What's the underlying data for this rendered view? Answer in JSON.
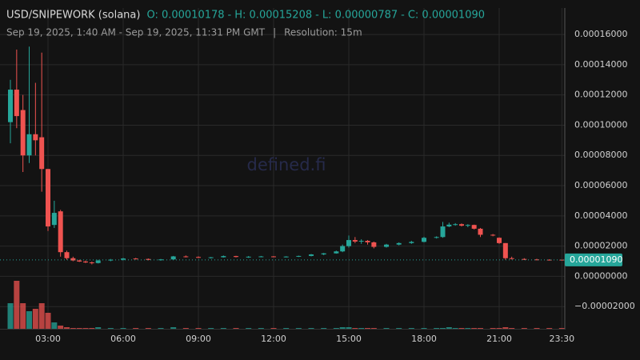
{
  "chart_data": {
    "type": "candlestick",
    "title": "USD/SNIPEWORK (solana)",
    "ohlc": [
      "O: 0.00010178",
      "H: 0.00015208",
      "L: 0.00000787",
      "C: 0.00001090"
    ],
    "ohlc_separator": "-",
    "subtitle": "Sep 19, 2025, 1:40 AM - Sep 19, 2025, 11:31 PM GMT",
    "subtitle_separator": "|",
    "resolution": "Resolution: 15m",
    "watermark": "defined.fi",
    "up_color": "#26a69a",
    "down_color": "#ef5350",
    "x": [
      1.5,
      1.75,
      2,
      2.25,
      2.5,
      2.75,
      3,
      3.25,
      3.5,
      3.75,
      4,
      4.25,
      4.5,
      4.75,
      5,
      5.5,
      6,
      6.5,
      7,
      7.5,
      8,
      8.5,
      9,
      9.5,
      10,
      10.5,
      11,
      11.5,
      12,
      12.5,
      13,
      13.5,
      14,
      14.5,
      14.75,
      15,
      15.25,
      15.5,
      15.75,
      16,
      16.5,
      17,
      17.5,
      18,
      18.5,
      18.75,
      19,
      19.25,
      19.5,
      19.75,
      20,
      20.25,
      20.75,
      21,
      21.25,
      21.5,
      22,
      22.5,
      23,
      23.5
    ],
    "open": [
      0.000102,
      0.0001235,
      0.00011,
      8e-05,
      9.4e-05,
      9.2e-05,
      7.1e-05,
      3.4e-05,
      4.3e-05,
      1.6e-05,
      1.2e-05,
      1.05e-05,
      9.8e-06,
      9.2e-06,
      8.8e-06,
      1.05e-05,
      1.1e-05,
      1.18e-05,
      1.15e-05,
      1.09e-05,
      1.12e-05,
      1.32e-05,
      1.28e-05,
      1.24e-05,
      1.26e-05,
      1.34e-05,
      1.28e-05,
      1.3e-05,
      1.32e-05,
      1.29e-05,
      1.31e-05,
      1.35e-05,
      1.45e-05,
      1.52e-05,
      1.65e-05,
      2e-05,
      2.4e-05,
      2.3e-05,
      2.35e-05,
      2.25e-05,
      1.95e-05,
      2.1e-05,
      2.2e-05,
      2.28e-05,
      2.55e-05,
      2.6e-05,
      3.3e-05,
      3.42e-05,
      3.45e-05,
      3.35e-05,
      3.4e-05,
      3.15e-05,
      2.75e-05,
      2.55e-05,
      2.2e-05,
      1.2e-05,
      1.15e-05,
      1.12e-05,
      1.1e-05,
      1.1e-05
    ],
    "high": [
      0.00013,
      0.00015,
      0.00012,
      0.000152,
      0.000128,
      0.000148,
      7.1e-05,
      5e-05,
      4.4e-05,
      1.7e-05,
      1.3e-05,
      1.1e-05,
      1.05e-05,
      9.8e-06,
      1.1e-05,
      1.15e-05,
      1.22e-05,
      1.22e-05,
      1.18e-05,
      1.15e-05,
      1.35e-05,
      1.38e-05,
      1.32e-05,
      1.28e-05,
      1.38e-05,
      1.36e-05,
      1.34e-05,
      1.35e-05,
      1.34e-05,
      1.33e-05,
      1.37e-05,
      1.48e-05,
      1.55e-05,
      1.7e-05,
      2.1e-05,
      2.7e-05,
      2.6e-05,
      2.45e-05,
      2.4e-05,
      2.3e-05,
      2.15e-05,
      2.25e-05,
      2.35e-05,
      2.62e-05,
      2.65e-05,
      3.6e-05,
      3.55e-05,
      3.52e-05,
      3.5e-05,
      3.45e-05,
      3.42e-05,
      3.2e-05,
      2.8e-05,
      2.58e-05,
      2.2e-05,
      1.3e-05,
      1.2e-05,
      1.16e-05,
      1.13e-05,
      1.1e-05
    ],
    "low": [
      8.8e-05,
      9.8e-05,
      6.9e-05,
      7.5e-05,
      8e-05,
      5.6e-05,
      3e-05,
      3.2e-05,
      1.3e-05,
      1.1e-05,
      1e-05,
      9.5e-06,
      8.8e-06,
      7.9e-06,
      8.5e-06,
      1e-05,
      1.05e-05,
      1.12e-05,
      1.06e-05,
      1.04e-05,
      1.1e-05,
      1.25e-05,
      1.21e-05,
      1.18e-05,
      1.24e-05,
      1.25e-05,
      1.22e-05,
      1.26e-05,
      1.26e-05,
      1.25e-05,
      1.28e-05,
      1.32e-05,
      1.4e-05,
      1.5e-05,
      1.6e-05,
      1.9e-05,
      2.2e-05,
      2.15e-05,
      2.1e-05,
      1.85e-05,
      1.9e-05,
      2.05e-05,
      2.15e-05,
      2.25e-05,
      2.5e-05,
      2.55e-05,
      3.25e-05,
      3.35e-05,
      3.3e-05,
      3.25e-05,
      3.1e-05,
      2.6e-05,
      2.65e-05,
      2.15e-05,
      1.1e-05,
      1.12e-05,
      1.08e-05,
      1.06e-05,
      1.07e-05,
      1.07e-05
    ],
    "close": [
      0.0001235,
      0.000106,
      8e-05,
      9.4e-05,
      9e-05,
      7.1e-05,
      3.3e-05,
      4.2e-05,
      1.6e-05,
      1.2e-05,
      1.05e-05,
      9.8e-06,
      9.2e-06,
      8.8e-06,
      1.05e-05,
      1.1e-05,
      1.18e-05,
      1.15e-05,
      1.09e-05,
      1.12e-05,
      1.32e-05,
      1.28e-05,
      1.24e-05,
      1.26e-05,
      1.34e-05,
      1.28e-05,
      1.3e-05,
      1.32e-05,
      1.29e-05,
      1.31e-05,
      1.35e-05,
      1.45e-05,
      1.52e-05,
      1.65e-05,
      2e-05,
      2.4e-05,
      2.3e-05,
      2.35e-05,
      2.25e-05,
      1.95e-05,
      2.1e-05,
      2.2e-05,
      2.28e-05,
      2.55e-05,
      2.6e-05,
      3.3e-05,
      3.42e-05,
      3.45e-05,
      3.35e-05,
      3.4e-05,
      3.15e-05,
      2.75e-05,
      2.72e-05,
      2.2e-05,
      1.2e-05,
      1.15e-05,
      1.12e-05,
      1.1e-05,
      1.09e-05,
      1.09e-05
    ],
    "volume": [
      32,
      60,
      32,
      22,
      25,
      32,
      20,
      8,
      4,
      2,
      1,
      1,
      1,
      1,
      2,
      1,
      1,
      1,
      1,
      1,
      2,
      1,
      1,
      1,
      1,
      1,
      1,
      1,
      1,
      1,
      1,
      1,
      1,
      1,
      2,
      2,
      1,
      1,
      1,
      1,
      1,
      1,
      1,
      1,
      1,
      1,
      2,
      1,
      1,
      1,
      1,
      1,
      1,
      1,
      2,
      1,
      1,
      1,
      1,
      1
    ],
    "volume_lim": [
      0,
      100
    ],
    "xlim": [
      1.404,
      23.617
    ],
    "xticks": [
      {
        "value": 3,
        "label": "03:00"
      },
      {
        "value": 6,
        "label": "06:00"
      },
      {
        "value": 9,
        "label": "09:00"
      },
      {
        "value": 12,
        "label": "12:00"
      },
      {
        "value": 15,
        "label": "15:00"
      },
      {
        "value": 18,
        "label": "18:00"
      },
      {
        "value": 21,
        "label": "21:00"
      },
      {
        "value": 23.5,
        "label": "23:30"
      }
    ],
    "ylim": [
      -3.47e-05,
      0.0001775
    ],
    "yticks": [
      {
        "value": 0.00016,
        "label": "0.00016000"
      },
      {
        "value": 0.00014,
        "label": "0.00014000"
      },
      {
        "value": 0.00012,
        "label": "0.00012000"
      },
      {
        "value": 0.0001,
        "label": "0.00010000"
      },
      {
        "value": 8e-05,
        "label": "0.00008000"
      },
      {
        "value": 6e-05,
        "label": "0.00006000"
      },
      {
        "value": 4e-05,
        "label": "0.00004000"
      },
      {
        "value": 2e-05,
        "label": "0.00002000"
      },
      {
        "value": 0,
        "label": "0.00000000"
      },
      {
        "value": -2e-05,
        "label": "−0.00002000"
      }
    ],
    "last_price": {
      "value": 1.09e-05,
      "label": "0.00001090"
    },
    "grid": true
  }
}
